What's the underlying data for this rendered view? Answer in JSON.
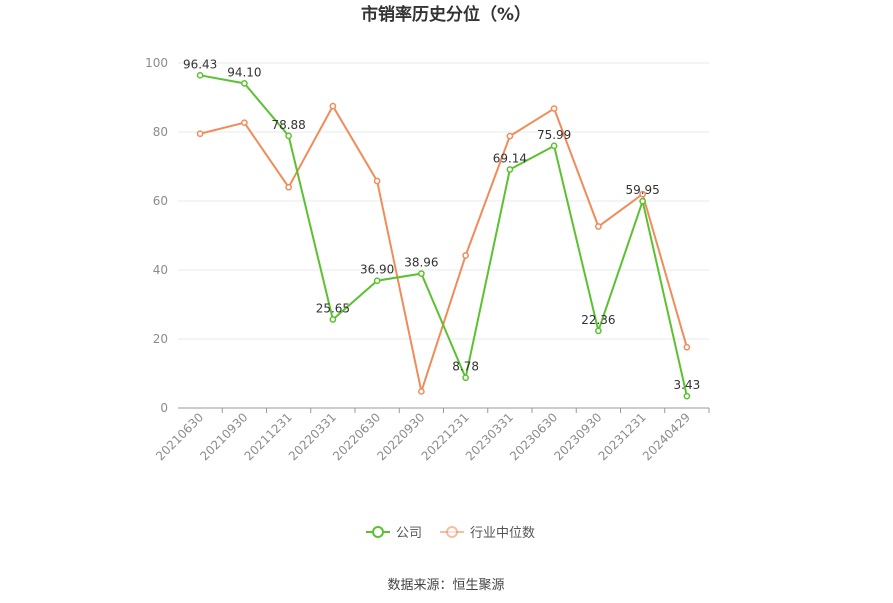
{
  "chart_data": {
    "type": "line",
    "title": "市销率历史分位（%）",
    "source": "数据来源：恒生聚源",
    "categories": [
      "20210630",
      "20210930",
      "20211231",
      "20220331",
      "20220630",
      "20220930",
      "20221231",
      "20230331",
      "20230630",
      "20230930",
      "20231231",
      "20240429"
    ],
    "ylim": [
      0,
      100
    ],
    "yticks": [
      0,
      20,
      40,
      60,
      80,
      100
    ],
    "grid": true,
    "legend_position": "bottom",
    "series": [
      {
        "name": "公司",
        "color": "#5cc130",
        "values": [
          96.43,
          94.1,
          78.88,
          25.65,
          36.9,
          38.96,
          8.78,
          69.14,
          75.99,
          22.36,
          59.95,
          3.43
        ],
        "labels": [
          "96.43",
          "94.10",
          "78.88",
          "25.65",
          "36.90",
          "38.96",
          "8.78",
          "69.14",
          "75.99",
          "22.36",
          "59.95",
          "3.43"
        ]
      },
      {
        "name": "行业中位数",
        "color": "#f08c5a",
        "values": [
          79.5,
          82.7,
          64.0,
          87.5,
          65.8,
          4.8,
          44.2,
          78.8,
          86.8,
          52.6,
          62.0,
          17.6
        ]
      }
    ]
  }
}
